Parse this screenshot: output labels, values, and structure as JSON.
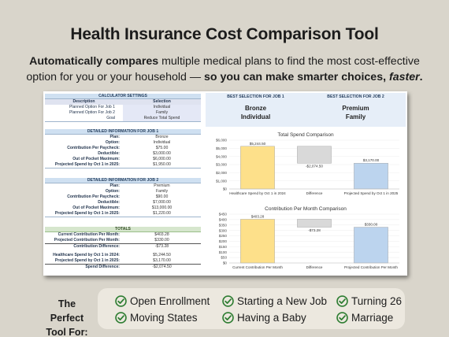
{
  "title": "Health Insurance Cost Comparison Tool",
  "subtitle": {
    "b1": "Automatically compares",
    "t1": " multiple medical plans to find the most cost-effective option for you or your household — ",
    "b2": "so you can make smarter choices, ",
    "i1": "faster",
    "t2": "."
  },
  "settings": {
    "header": "CALCULATOR SETTINGS",
    "col_description": "Description",
    "col_selection": "Selection",
    "rows": [
      {
        "k": "Planned Option For Job 1",
        "v": "Individual"
      },
      {
        "k": "Planned Option For Job 2",
        "v": "Family"
      },
      {
        "k": "Goal",
        "v": "Reduce Total Spend"
      }
    ]
  },
  "job1": {
    "header": "DETAILED INFORMATION FOR JOB 1",
    "rows": [
      {
        "k": "Plan:",
        "v": "Bronze"
      },
      {
        "k": "Option:",
        "v": "Individual"
      },
      {
        "k": "Contribution Per Paycheck:",
        "v": "$75.00"
      },
      {
        "k": "Deductible:",
        "v": "$3,000.00"
      },
      {
        "k": "Out of Pocket Maximum:",
        "v": "$6,000.00"
      },
      {
        "k": "Projected Spend by Oct 1 in 2025:",
        "v": "$1,950.00"
      }
    ]
  },
  "job2": {
    "header": "DETAILED INFORMATION FOR JOB 2",
    "rows": [
      {
        "k": "Plan:",
        "v": "Premium"
      },
      {
        "k": "Option:",
        "v": "Family"
      },
      {
        "k": "Contribution Per Paycheck:",
        "v": "$90.00"
      },
      {
        "k": "Deductible:",
        "v": "$7,000.00"
      },
      {
        "k": "Out of Pocket Maximum:",
        "v": "$13,000.00"
      },
      {
        "k": "Projected Spend by Oct 1 in 2025:",
        "v": "$1,220.00"
      }
    ]
  },
  "totals": {
    "header": "TOTALS",
    "rows": [
      {
        "k": "Current Contribution Per Month:",
        "v": "$403.28"
      },
      {
        "k": "Projected Contribution Per Month:",
        "v": "$330.00"
      },
      {
        "k": "Contribution Difference:",
        "v": "-$73.28"
      },
      {
        "k": "Healthcare Spend by Oct 1 in 2024:",
        "v": "$5,244.50"
      },
      {
        "k": "Projected Spend by Oct 1 in 2025:",
        "v": "$3,170.00"
      },
      {
        "k": "Spend Difference:",
        "v": "-$2,074.50"
      }
    ]
  },
  "best": {
    "job1_label": "BEST SELECTION FOR JOB 1",
    "job2_label": "BEST SELECTION FOR JOB 2",
    "job1_plan": "Bronze",
    "job1_option": "Individual",
    "job2_plan": "Premium",
    "job2_option": "Family"
  },
  "chart_data": [
    {
      "type": "bar",
      "title": "Total Spend Comparison",
      "categories": [
        "Healthcare Spend by Oct 1 in 2024",
        "Difference",
        "Projected Spend by Oct 1 in 2025"
      ],
      "values": [
        5244.5,
        -2074.5,
        3170.0
      ],
      "data_labels": [
        "$5,244.50",
        "-$2,074.50",
        "$3,170.00"
      ],
      "ticks": [
        "$0",
        "$1,000",
        "$2,000",
        "$3,000",
        "$4,000",
        "$5,000",
        "$6,000"
      ],
      "ylim": [
        0,
        6000
      ],
      "colors": [
        "#fde08a",
        "#d9d9d9",
        "#bcd4ee"
      ]
    },
    {
      "type": "bar",
      "title": "Contribution Per Month Comparison",
      "categories": [
        "Current Contribution Per Month",
        "Difference",
        "Projected Contribution Per Month"
      ],
      "values": [
        403.28,
        -73.28,
        330.0
      ],
      "data_labels": [
        "$403.28",
        "-$73.28",
        "$330.00"
      ],
      "ticks": [
        "$0",
        "$50",
        "$100",
        "$150",
        "$200",
        "$250",
        "$300",
        "$350",
        "$400",
        "$450"
      ],
      "ylim": [
        0,
        450
      ],
      "colors": [
        "#fde08a",
        "#d9d9d9",
        "#bcd4ee"
      ]
    }
  ],
  "perfect_for": "The Perfect Tool For:",
  "tags": [
    "Open Enrollment",
    "Starting a New Job",
    "Turning 26",
    "Moving States",
    "Having a Baby",
    "Marriage"
  ],
  "accent": "#2e7d32"
}
